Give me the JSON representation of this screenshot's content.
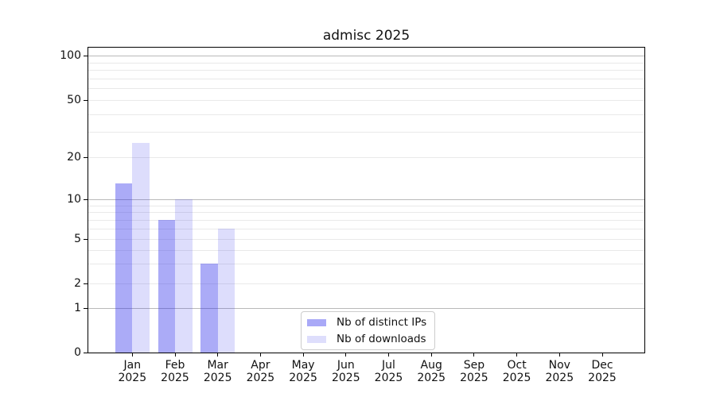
{
  "figure": {
    "background": "#ffffff"
  },
  "chart_data": {
    "type": "bar",
    "title": "admisc 2025",
    "categories": [
      "Jan 2025",
      "Feb 2025",
      "Mar 2025",
      "Apr 2025",
      "May 2025",
      "Jun 2025",
      "Jul 2025",
      "Aug 2025",
      "Sep 2025",
      "Oct 2025",
      "Nov 2025",
      "Dec 2025"
    ],
    "series": [
      {
        "name": "Nb of distinct IPs",
        "swatch_color": "#a9a9f7",
        "fill_rgba": "rgba(45,45,235,0.40)",
        "values": [
          13,
          7,
          3,
          0,
          0,
          0,
          0,
          0,
          0,
          0,
          0,
          0
        ]
      },
      {
        "name": "Nb of downloads",
        "swatch_color": "#dedefc",
        "fill_rgba": "rgba(45,45,235,0.16)",
        "values": [
          25,
          10,
          6,
          0,
          0,
          0,
          0,
          0,
          0,
          0,
          0,
          0
        ]
      }
    ],
    "xlabel": "",
    "ylabel": "",
    "y_axis": {
      "scale": "log",
      "tick_labels": [
        0,
        1,
        2,
        5,
        10,
        20,
        50,
        100
      ],
      "major_gridlines": [
        1,
        10,
        100
      ],
      "minor_gridlines": [
        2,
        3,
        4,
        5,
        6,
        7,
        8,
        9,
        20,
        30,
        40,
        50,
        60,
        70,
        80,
        90
      ],
      "range_shown": [
        0,
        100
      ]
    },
    "grid": true,
    "legend_position": "inside-bottom-center"
  },
  "colors": {
    "major_gridline": "#b9b9b9",
    "minor_gridline": "#e9e9e9",
    "axis_border": "#000000",
    "text": "#111111",
    "legend_border": "#cccccc"
  }
}
